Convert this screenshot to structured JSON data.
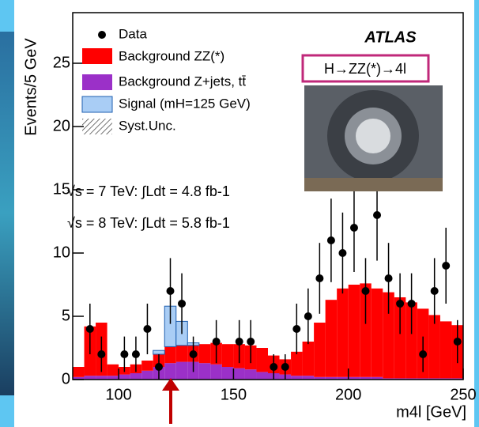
{
  "chart_data": {
    "type": "histogram",
    "y_label": "Events/5 GeV",
    "x_label": "m4l [GeV]",
    "bins": [
      80,
      85,
      90,
      95,
      100,
      105,
      110,
      115,
      120,
      125,
      130,
      135,
      140,
      145,
      150,
      155,
      160,
      165,
      170,
      175,
      180,
      185,
      190,
      195,
      200,
      205,
      210,
      215,
      220,
      225,
      230,
      235,
      240,
      245,
      250
    ],
    "series": [
      {
        "name": "Background Z+jets, tt̄",
        "color": "#9b30c8",
        "values": [
          0.2,
          0.3,
          0.3,
          0.3,
          0.4,
          0.5,
          0.7,
          1.0,
          1.3,
          1.4,
          1.4,
          1.3,
          1.2,
          1.0,
          0.9,
          0.8,
          0.6,
          0.5,
          0.4,
          0.3,
          0.3,
          0.2,
          0.2,
          0.2,
          0.2,
          0.2,
          0.2,
          0.1,
          0.1,
          0.1,
          0.1,
          0.1,
          0.1,
          0.1
        ]
      },
      {
        "name": "Background ZZ(*)",
        "color": "#ff0000",
        "values": [
          0.8,
          3.9,
          4.2,
          0.9,
          0.6,
          0.7,
          0.8,
          1.0,
          1.3,
          1.3,
          1.3,
          1.5,
          1.7,
          1.8,
          1.9,
          1.9,
          1.9,
          1.4,
          1.2,
          1.9,
          2.7,
          4.3,
          6.1,
          7.0,
          7.3,
          7.4,
          7.0,
          6.8,
          6.4,
          6.0,
          5.5,
          5.0,
          4.5,
          4.2
        ]
      },
      {
        "name": "Signal (mH=125 GeV)",
        "color": "#a9cdf5",
        "values": [
          0,
          0,
          0,
          0,
          0,
          0,
          0,
          0.3,
          3.2,
          1.9,
          0.2,
          0,
          0,
          0,
          0,
          0,
          0,
          0,
          0,
          0,
          0,
          0,
          0,
          0,
          0,
          0,
          0,
          0,
          0,
          0,
          0,
          0,
          0,
          0
        ]
      }
    ],
    "data": {
      "name": "Data",
      "color": "#000000",
      "values": [
        null,
        4,
        2,
        null,
        2,
        2,
        4,
        1,
        7,
        6,
        2,
        null,
        3,
        null,
        3,
        3,
        null,
        1,
        1,
        4,
        5,
        8,
        11,
        10,
        12,
        7,
        13,
        8,
        6,
        6,
        2,
        7,
        9,
        3
      ],
      "errors": [
        null,
        2,
        1.4,
        null,
        1.4,
        1.4,
        2,
        1,
        2.6,
        2.4,
        1.4,
        null,
        1.7,
        null,
        1.7,
        1.7,
        null,
        1,
        1,
        2,
        2.2,
        2.8,
        3.3,
        3.2,
        3.5,
        2.6,
        3.6,
        2.8,
        2.4,
        2.4,
        1.4,
        2.6,
        3,
        1.7
      ]
    },
    "syst_label": "Syst.Unc.",
    "experiment": "ATLAS",
    "channel": "H→ZZ(*)→4l",
    "lumi_7": "√s = 7 TeV: ∫Ldt = 4.8 fb-1",
    "lumi_8": "√s = 8 TeV: ∫Ldt = 5.8 fb-1",
    "xlim": [
      80,
      250
    ],
    "ylim": [
      0,
      29
    ],
    "xticks": [
      100,
      150,
      200,
      250
    ],
    "yticks": [
      0,
      5,
      10,
      15,
      20,
      25
    ]
  }
}
